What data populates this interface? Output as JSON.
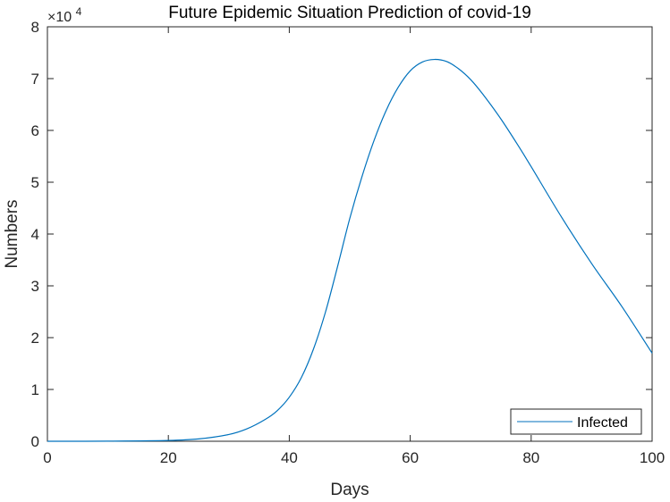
{
  "chart_data": {
    "type": "line",
    "title": "Future Epidemic Situation Prediction of covid-19",
    "xlabel": "Days",
    "ylabel": "Numbers",
    "y_multiplier_base": "×10",
    "y_multiplier_exponent": "4",
    "y_scale_factor": 10000,
    "xlim": [
      0,
      100
    ],
    "ylim": [
      0,
      80000
    ],
    "x_ticks": [
      0,
      20,
      40,
      60,
      80,
      100
    ],
    "y_ticks": [
      0,
      10000,
      20000,
      30000,
      40000,
      50000,
      60000,
      70000,
      80000
    ],
    "x_tick_labels": [
      "0",
      "20",
      "40",
      "60",
      "80",
      "100"
    ],
    "y_tick_labels": [
      "0",
      "1",
      "2",
      "3",
      "4",
      "5",
      "6",
      "7",
      "8"
    ],
    "grid": false,
    "legend_position": "bottom-right",
    "line_color": "#0072BD",
    "series": [
      {
        "name": "Infected",
        "x": [
          0,
          10,
          20,
          25,
          30,
          33,
          36,
          38,
          40,
          42,
          44,
          46,
          48,
          50,
          52,
          54,
          56,
          58,
          60,
          62,
          64,
          66,
          68,
          70,
          72,
          75,
          78,
          80,
          85,
          90,
          95,
          100
        ],
        "y": [
          0,
          20,
          150,
          450,
          1300,
          2400,
          4200,
          5900,
          8500,
          12300,
          17800,
          25000,
          33800,
          43000,
          51000,
          58000,
          63800,
          68300,
          71500,
          73200,
          73700,
          73300,
          71900,
          69800,
          67000,
          62200,
          56800,
          53000,
          43300,
          34300,
          26000,
          17000
        ]
      }
    ]
  }
}
